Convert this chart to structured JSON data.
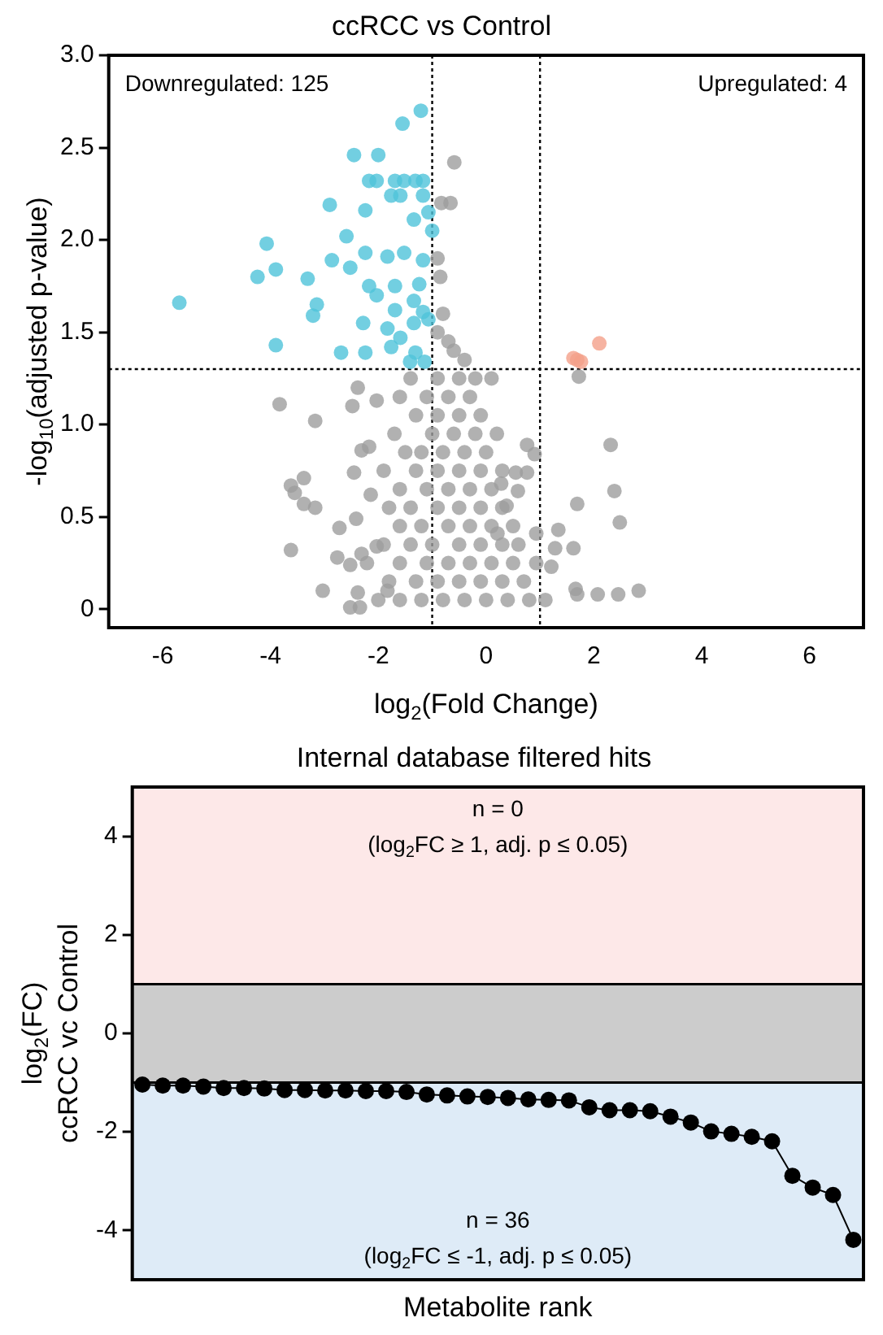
{
  "chart_data": [
    {
      "type": "scatter",
      "title": "ccRCC vs Control",
      "xlabel": "log$_{2}$(Fold Change)",
      "ylabel": "-log$_{10}$(adjusted p-value)",
      "xlim": [
        -7,
        7
      ],
      "xticks": [
        -6,
        -4,
        -2,
        0,
        2,
        4,
        6
      ],
      "ylim": [
        -0.1,
        3.0
      ],
      "yticks": [
        0.0,
        {
          "value": 0.5,
          "label": "0.5"
        },
        {
          "value": 1,
          "label": "1.0"
        },
        {
          "value": 1.5,
          "label": "1.5"
        },
        {
          "value": 2,
          "label": "2.0"
        },
        {
          "value": 2.5,
          "label": "2.5"
        },
        {
          "value": 3,
          "label": "3.0"
        }
      ],
      "grid": false,
      "legend": false,
      "marker": "circle",
      "annotations": [
        "Downregulated: 125",
        "Upregulated: 4"
      ],
      "ref_lines": [
        {
          "axis": "x",
          "value": -1,
          "line_style": "dotted",
          "color": "#000000"
        },
        {
          "axis": "x",
          "value": 1,
          "line_style": "dotted",
          "color": "#000000"
        },
        {
          "axis": "y",
          "value": 1.3,
          "line_style": "dotted",
          "color": "#000000"
        }
      ],
      "series": [
        {
          "color": "#9e9e9e",
          "x": [
            -0.59,
            -0.83,
            -0.66,
            1.72,
            2.31,
            0.76,
            0.9,
            0.55,
            0.76,
            0.28,
            0.59,
            2.38,
            1.69,
            0.38,
            2.48,
            1.34,
            0.93,
            0.21,
            1.28,
            1.62,
            0.93,
            1.21,
            1.66,
            1.69,
            2.07,
            2.45,
            2.83,
            -3.83,
            -3.17,
            -2.38,
            -2.48,
            -2.03,
            -3.62,
            -3.38,
            -3.55,
            -3.38,
            -3.17,
            -2.72,
            -3.62,
            -2.76,
            -3.03,
            -2.52,
            -2.34,
            -2.45,
            -2.14,
            -2.31,
            -2.17,
            -2.41,
            -2.31,
            -2.52,
            -2.21,
            -2.38,
            -2.03,
            -1.83,
            -0.8,
            -0.9,
            -0.85,
            -0.6,
            -0.9,
            -0.7,
            -0.4,
            -0.9,
            -0.5,
            -0.2,
            0.1,
            -1.4,
            -1.6,
            -1.1,
            -0.7,
            -0.3,
            -1.3,
            -0.9,
            -0.5,
            -0.1,
            -1.7,
            -1.0,
            -0.6,
            -0.2,
            0.2,
            -1.5,
            -1.2,
            -0.8,
            -0.4,
            0.0,
            -1.9,
            -1.3,
            -0.9,
            -0.5,
            -0.1,
            0.3,
            -1.6,
            -1.1,
            -0.7,
            -0.3,
            0.1,
            -1.8,
            -1.4,
            -0.9,
            -0.5,
            -0.1,
            0.3,
            -1.6,
            -1.2,
            -0.7,
            -0.3,
            0.1,
            0.5,
            -1.9,
            -1.4,
            -1.0,
            -0.5,
            -0.1,
            0.3,
            0.6,
            -1.6,
            -1.1,
            -0.7,
            -0.3,
            0.1,
            0.5,
            -1.8,
            -1.3,
            -0.9,
            -0.5,
            -0.1,
            0.3,
            0.7,
            -2.0,
            -1.6,
            -1.2,
            -0.8,
            -0.4,
            0.0,
            0.4,
            0.8,
            1.1
          ],
          "values": [
            2.42,
            2.2,
            2.2,
            1.26,
            0.89,
            0.89,
            0.84,
            0.74,
            0.74,
            0.68,
            0.64,
            0.64,
            0.57,
            0.56,
            0.47,
            0.43,
            0.41,
            0.41,
            0.33,
            0.33,
            0.25,
            0.23,
            0.11,
            0.08,
            0.08,
            0.08,
            0.1,
            1.11,
            1.02,
            1.2,
            1.1,
            1.13,
            0.67,
            0.71,
            0.63,
            0.57,
            0.55,
            0.44,
            0.32,
            0.28,
            0.1,
            0.01,
            0.01,
            0.74,
            0.62,
            0.86,
            0.88,
            0.49,
            0.3,
            0.24,
            0.25,
            0.09,
            0.34,
            0.1,
            1.6,
            1.9,
            1.8,
            1.4,
            1.5,
            1.45,
            1.35,
            1.25,
            1.25,
            1.25,
            1.25,
            1.25,
            1.15,
            1.15,
            1.15,
            1.15,
            1.05,
            1.05,
            1.05,
            1.05,
            0.95,
            0.95,
            0.95,
            0.95,
            0.95,
            0.85,
            0.85,
            0.85,
            0.85,
            0.85,
            0.75,
            0.75,
            0.75,
            0.75,
            0.75,
            0.75,
            0.65,
            0.65,
            0.65,
            0.65,
            0.65,
            0.55,
            0.55,
            0.55,
            0.55,
            0.55,
            0.55,
            0.45,
            0.45,
            0.45,
            0.45,
            0.45,
            0.45,
            0.35,
            0.35,
            0.35,
            0.35,
            0.35,
            0.35,
            0.35,
            0.25,
            0.25,
            0.25,
            0.25,
            0.25,
            0.25,
            0.15,
            0.15,
            0.15,
            0.15,
            0.15,
            0.15,
            0.15,
            0.05,
            0.05,
            0.05,
            0.05,
            0.05,
            0.05,
            0.05,
            0.05,
            0.05
          ]
        },
        {
          "color": "#4fc3d9",
          "x": [
            -1.21,
            -1.55,
            -2.45,
            -2.0,
            -2.17,
            -2.03,
            -1.69,
            -1.52,
            -1.31,
            -1.17,
            -2.9,
            -2.24,
            -1.76,
            -1.59,
            -1.17,
            -1.34,
            -1.07,
            -1.0,
            -4.07,
            -2.59,
            -2.86,
            -2.52,
            -2.24,
            -1.83,
            -1.52,
            -1.17,
            -4.24,
            -3.9,
            -3.31,
            -2.17,
            -1.69,
            -1.24,
            -2.03,
            -1.34,
            -5.69,
            -3.14,
            -3.21,
            -1.69,
            -1.17,
            -2.28,
            -1.83,
            -1.34,
            -1.07,
            -1.59,
            -3.9,
            -2.69,
            -2.24,
            -1.76,
            -1.31,
            -1.41,
            -1.14
          ],
          "values": [
            2.7,
            2.63,
            2.46,
            2.46,
            2.32,
            2.32,
            2.32,
            2.32,
            2.32,
            2.32,
            2.19,
            2.16,
            2.24,
            2.24,
            2.24,
            2.11,
            2.15,
            2.05,
            1.98,
            2.02,
            1.89,
            1.85,
            1.93,
            1.91,
            1.93,
            1.89,
            1.8,
            1.84,
            1.79,
            1.75,
            1.75,
            1.76,
            1.7,
            1.67,
            1.66,
            1.65,
            1.59,
            1.62,
            1.61,
            1.55,
            1.52,
            1.55,
            1.57,
            1.47,
            1.43,
            1.39,
            1.39,
            1.42,
            1.39,
            1.34,
            1.34
          ]
        },
        {
          "color": "#f4a08a",
          "x": [
            2.1,
            1.62,
            1.76,
            1.69
          ],
          "values": [
            1.44,
            1.36,
            1.34,
            1.35
          ]
        }
      ]
    },
    {
      "type": "line",
      "title": "Internal database filtered hits",
      "xlabel": "Metabolite rank",
      "ylabel": "log$_{2}$(FC)\nccRCC vc Control",
      "categories": [
        null,
        null,
        null,
        null,
        null,
        null,
        null,
        null,
        null,
        null,
        null,
        null,
        null,
        null,
        null,
        null,
        null,
        null,
        null,
        null,
        null,
        null,
        null,
        null,
        null,
        null,
        null,
        null,
        null,
        null,
        null,
        null,
        null,
        null,
        null,
        null
      ],
      "ylim": [
        -5,
        5
      ],
      "yticks": [
        -4,
        -2,
        0,
        2,
        4
      ],
      "tick_labels": "y",
      "grid": false,
      "legend": false,
      "marker": "circle",
      "bands": [
        {
          "axis": "y",
          "from": 1,
          "to": 5,
          "color": "#fde8e8",
          "label": "n = 0\n(log$_{2}$FC ≥ 1, adj. p ≤ 0.05)"
        },
        {
          "axis": "y",
          "from": -1,
          "to": 1,
          "color": "#cccccc"
        },
        {
          "axis": "y",
          "from": -5,
          "to": -1,
          "color": "#deebf7",
          "label": "n = 36\n(log$_{2}$FC ≤ -1, adj. p ≤ 0.05)"
        }
      ],
      "series": [
        {
          "color": "#000000",
          "values": [
            -1.04,
            -1.06,
            -1.06,
            -1.08,
            -1.11,
            -1.11,
            -1.12,
            -1.15,
            -1.15,
            -1.16,
            -1.16,
            -1.17,
            -1.17,
            -1.19,
            -1.24,
            -1.26,
            -1.28,
            -1.29,
            -1.31,
            -1.34,
            -1.35,
            -1.36,
            -1.5,
            -1.56,
            -1.56,
            -1.58,
            -1.69,
            -1.81,
            -1.99,
            -2.04,
            -2.1,
            -2.19,
            -2.89,
            -3.13,
            -3.28,
            -4.19
          ]
        }
      ]
    }
  ]
}
